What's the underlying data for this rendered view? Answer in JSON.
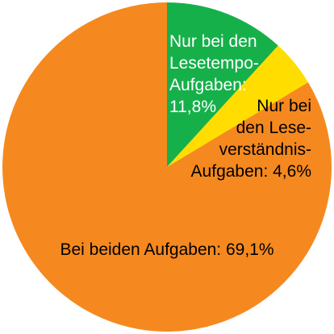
{
  "chart_data": {
    "type": "pie",
    "title": "",
    "slices": [
      {
        "category": "Nur bei den Lesetempo-Aufgaben",
        "value": 11.8,
        "color": "#16b04a",
        "label_lines": [
          "Nur bei den",
          "Lesetempo-",
          "Aufgaben:",
          "11,8%"
        ]
      },
      {
        "category": "Nur bei den Leseverständnis-Aufgaben",
        "value": 4.6,
        "color": "#ffdd00",
        "label_lines": [
          "Nur bei",
          "den Lese-",
          "verständnis-",
          "Aufgaben: 4,6%"
        ]
      },
      {
        "category": "Bei beiden Aufgaben",
        "value": 69.1,
        "color": "#f5891f",
        "label_lines": [
          "Bei beiden Aufgaben: 69,1%"
        ]
      }
    ],
    "start_angle_deg": 0,
    "direction": "clockwise",
    "legend": "none"
  }
}
